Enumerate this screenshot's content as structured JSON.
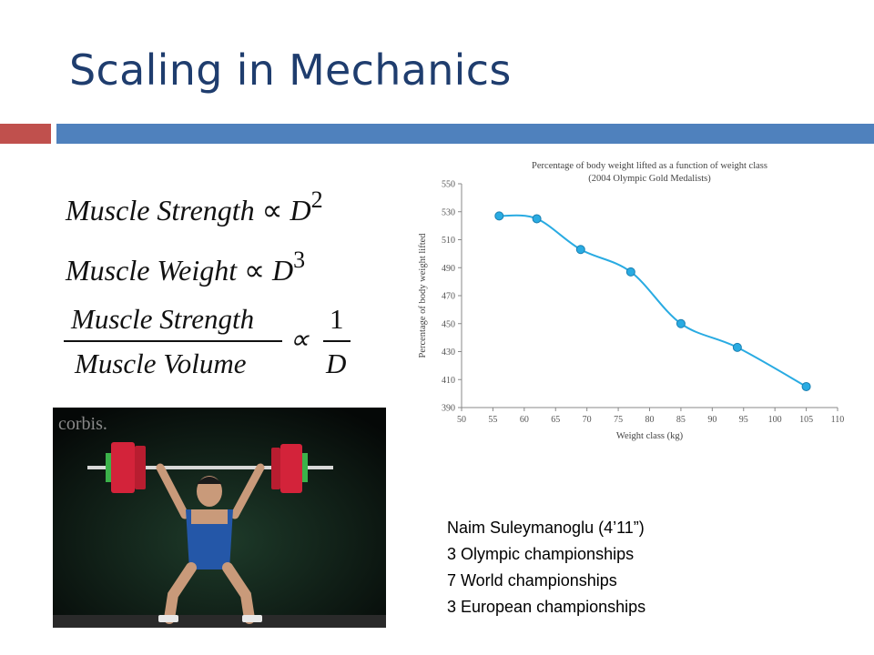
{
  "slide": {
    "title": "Scaling in Mechanics",
    "colors": {
      "title": "#1f3d6e",
      "accent_red": "#c0504d",
      "accent_blue": "#4f81bd"
    }
  },
  "equations": {
    "line1": {
      "lhs": "Muscle Strength",
      "prop": "∝",
      "rhs": "D",
      "exp": "2"
    },
    "line2": {
      "lhs": "Muscle Weight",
      "prop": "∝",
      "rhs": "D",
      "exp": "3"
    },
    "line3": {
      "num": "Muscle Strength",
      "den": "Muscle Volume",
      "prop": "∝",
      "rnum": "1",
      "rden": "D"
    }
  },
  "photo": {
    "watermark": "corbis."
  },
  "caption": {
    "lines": [
      "Naim Suleymanoglu (4’11”)",
      "3 Olympic championships",
      "7 World championships",
      "3 European championships"
    ]
  },
  "chart_data": {
    "type": "line",
    "title": "Percentage of body weight lifted as a function of weight class",
    "subtitle": "(2004 Olympic Gold Medalists)",
    "xlabel": "Weight class (kg)",
    "ylabel": "Percentage of body weight lifted",
    "xlim": [
      50,
      110
    ],
    "ylim": [
      390,
      550
    ],
    "xticks": [
      50,
      55,
      60,
      65,
      70,
      75,
      80,
      85,
      90,
      95,
      100,
      105,
      110
    ],
    "yticks": [
      390,
      410,
      430,
      450,
      470,
      490,
      510,
      530,
      550
    ],
    "x": [
      56,
      62,
      69,
      77,
      85,
      94,
      105
    ],
    "y": [
      527,
      525,
      503,
      487,
      450,
      433,
      405
    ],
    "color": "#29abe2",
    "grid": false
  }
}
